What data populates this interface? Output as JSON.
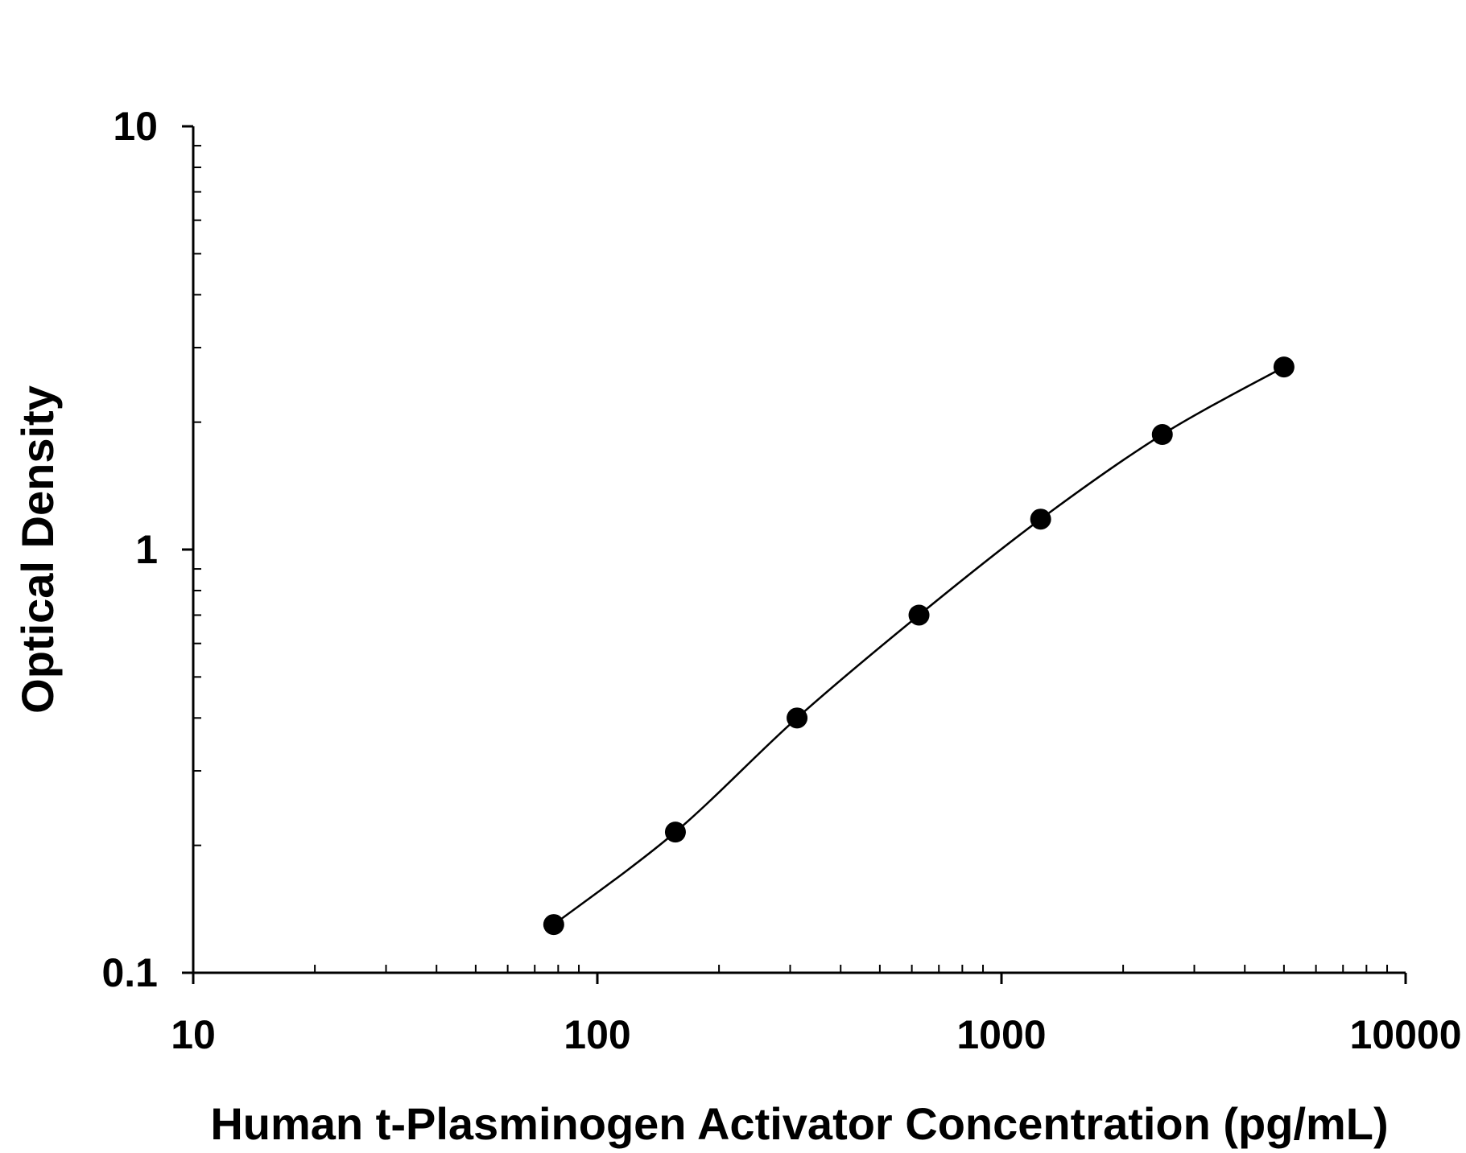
{
  "chart_data": {
    "type": "scatter",
    "title": "",
    "xlabel": "Human t-Plasminogen Activator Concentration (pg/mL)",
    "ylabel": "Optical Density",
    "xscale": "log",
    "yscale": "log",
    "xlim": [
      10,
      10000
    ],
    "ylim": [
      0.1,
      10
    ],
    "x_tick_labels": [
      "10",
      "100",
      "1000",
      "10000"
    ],
    "y_tick_labels": [
      "0.1",
      "1",
      "10"
    ],
    "grid": false,
    "legend": "none",
    "marker_color": "#000000",
    "line_color": "#000000",
    "series": [
      {
        "x": [
          78,
          156,
          312,
          625,
          1250,
          2500,
          5000
        ],
        "y": [
          0.13,
          0.215,
          0.4,
          0.7,
          1.18,
          1.87,
          2.7
        ],
        "fit_line": true
      }
    ]
  }
}
